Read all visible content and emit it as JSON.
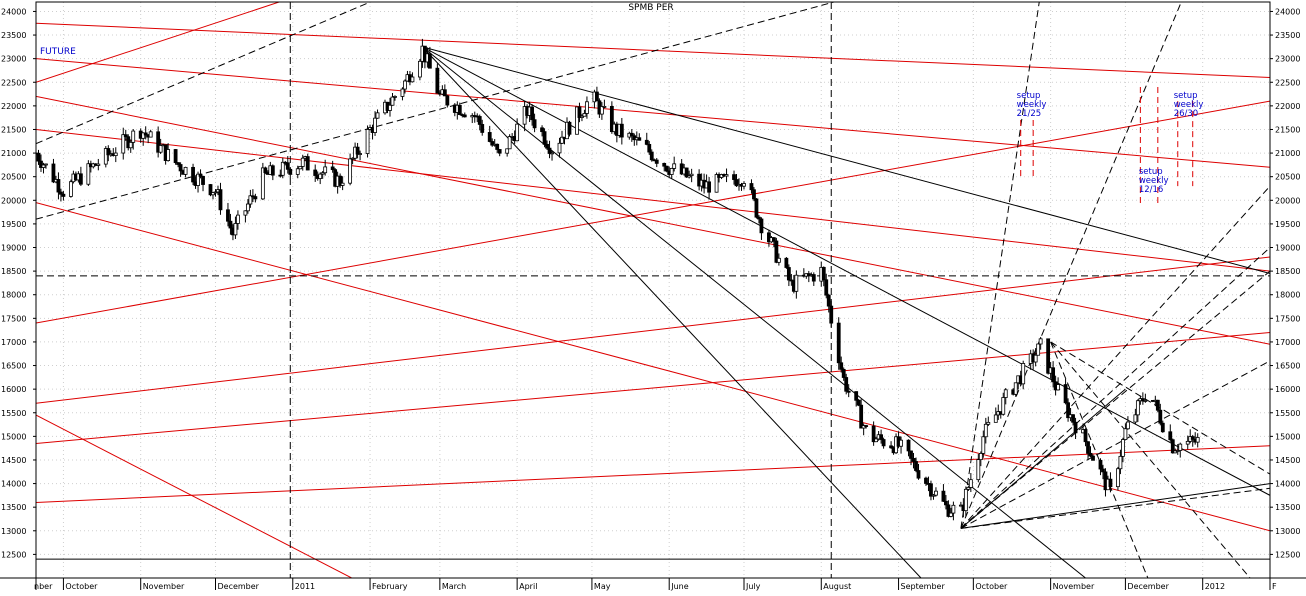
{
  "chart_data": {
    "type": "line",
    "title": "SPMB PER",
    "annotations": {
      "future_label": "FUTURE",
      "setups": [
        {
          "lines": [
            "setup",
            "weekly",
            "21/25"
          ],
          "x": "2011-10-24"
        },
        {
          "lines": [
            "setup",
            "weekly",
            "12/16"
          ],
          "x": "2011-12-12"
        },
        {
          "lines": [
            "setup",
            "weekly",
            "26/30"
          ],
          "x": "2011-12-26"
        }
      ]
    },
    "x_axis": {
      "range": [
        "2010-09-20",
        "2012-01-28"
      ],
      "tick_labels": [
        {
          "label": "nber",
          "date": "2010-09-20"
        },
        {
          "label": "October",
          "date": "2010-10-01"
        },
        {
          "label": "November",
          "date": "2010-11-01"
        },
        {
          "label": "December",
          "date": "2010-12-01"
        },
        {
          "label": "2011",
          "date": "2011-01-01"
        },
        {
          "label": "February",
          "date": "2011-02-01"
        },
        {
          "label": "March",
          "date": "2011-03-01"
        },
        {
          "label": "April",
          "date": "2011-04-01"
        },
        {
          "label": "May",
          "date": "2011-05-01"
        },
        {
          "label": "June",
          "date": "2011-06-01"
        },
        {
          "label": "July",
          "date": "2011-07-01"
        },
        {
          "label": "August",
          "date": "2011-08-01"
        },
        {
          "label": "September",
          "date": "2011-09-01"
        },
        {
          "label": "October",
          "date": "2011-10-01"
        },
        {
          "label": "November",
          "date": "2011-11-01"
        },
        {
          "label": "December",
          "date": "2011-12-01"
        },
        {
          "label": "2012",
          "date": "2012-01-01"
        },
        {
          "label": "F",
          "date": "2012-01-28"
        }
      ]
    },
    "y_axis": {
      "range": [
        12000,
        24200
      ],
      "ticks": [
        12500,
        13000,
        13500,
        14000,
        14500,
        15000,
        15500,
        16000,
        16500,
        17000,
        17500,
        18000,
        18500,
        19000,
        19500,
        20000,
        20500,
        21000,
        21500,
        22000,
        22500,
        23000,
        23500,
        24000
      ],
      "position": "both sides"
    },
    "series": [
      {
        "type": "price",
        "color": "#000000",
        "x": [
          "2010-09-20",
          "2010-10-01",
          "2010-10-15",
          "2010-11-01",
          "2010-11-15",
          "2010-12-01",
          "2010-12-08",
          "2010-12-20",
          "2011-01-05",
          "2011-01-20",
          "2011-02-01",
          "2011-02-15",
          "2011-02-22",
          "2011-03-01",
          "2011-03-15",
          "2011-03-25",
          "2011-04-05",
          "2011-04-15",
          "2011-05-01",
          "2011-05-10",
          "2011-05-20",
          "2011-06-01",
          "2011-06-15",
          "2011-07-01",
          "2011-07-08",
          "2011-07-20",
          "2011-08-01",
          "2011-08-10",
          "2011-08-20",
          "2011-09-01",
          "2011-09-10",
          "2011-09-20",
          "2011-09-26",
          "2011-10-05",
          "2011-10-15",
          "2011-10-28",
          "2011-11-05",
          "2011-11-15",
          "2011-11-25",
          "2011-12-01",
          "2011-12-10",
          "2011-12-20",
          "2011-12-30"
        ],
        "y": [
          21000,
          20200,
          20800,
          21500,
          20800,
          20200,
          19300,
          20500,
          20800,
          20400,
          21500,
          22500,
          23200,
          22200,
          21800,
          20900,
          21900,
          21100,
          22200,
          21500,
          21200,
          20700,
          20300,
          20500,
          19500,
          18200,
          18500,
          16200,
          15000,
          14800,
          14200,
          13500,
          13400,
          15000,
          15900,
          16900,
          15800,
          14900,
          13800,
          15100,
          16000,
          14800,
          14900
        ]
      }
    ],
    "trend_lines": {
      "red": [
        {
          "from": [
            "2010-09-20",
            23750
          ],
          "to": [
            "2012-01-28",
            22600
          ]
        },
        {
          "from": [
            "2010-09-20",
            23000
          ],
          "to": [
            "2012-01-28",
            20700
          ]
        },
        {
          "from": [
            "2010-09-20",
            22200
          ],
          "to": [
            "2012-01-28",
            16950
          ]
        },
        {
          "from": [
            "2010-09-20",
            21500
          ],
          "to": [
            "2012-01-28",
            18500
          ]
        },
        {
          "from": [
            "2010-09-20",
            19950
          ],
          "to": [
            "2012-01-28",
            13000
          ]
        },
        {
          "from": [
            "2010-09-20",
            17400
          ],
          "to": [
            "2012-01-28",
            22100
          ]
        },
        {
          "from": [
            "2010-09-20",
            15700
          ],
          "to": [
            "2012-01-28",
            18800
          ]
        },
        {
          "from": [
            "2010-09-20",
            14850
          ],
          "to": [
            "2012-01-28",
            17200
          ]
        },
        {
          "from": [
            "2010-09-20",
            13600
          ],
          "to": [
            "2012-01-28",
            14800
          ]
        },
        {
          "from": [
            "2010-09-20",
            15450
          ],
          "to": [
            "2011-02-01",
            11800
          ]
        },
        {
          "from": [
            "2010-09-20",
            22500
          ],
          "to": [
            "2011-01-07",
            24400
          ]
        }
      ],
      "black_solid": [
        {
          "from": [
            "2011-02-22",
            23250
          ],
          "to": [
            "2012-01-28",
            18450
          ]
        },
        {
          "from": [
            "2011-02-22",
            23250
          ],
          "to": [
            "2012-01-28",
            13750
          ]
        },
        {
          "from": [
            "2011-02-22",
            23250
          ],
          "to": [
            "2011-11-15",
            12000
          ]
        },
        {
          "from": [
            "2011-02-22",
            23250
          ],
          "to": [
            "2011-09-10",
            12000
          ]
        },
        {
          "from": [
            "2011-09-26",
            13050
          ],
          "to": [
            "2012-01-28",
            14000
          ]
        },
        {
          "from": [
            "2011-09-26",
            13050
          ],
          "to": [
            "2011-12-01",
            16000
          ]
        }
      ],
      "black_dashed": [
        {
          "from": [
            "2010-09-20",
            19600
          ],
          "to": [
            "2011-08-20",
            24400
          ]
        },
        {
          "from": [
            "2010-09-20",
            21200
          ],
          "to": [
            "2011-02-10",
            24400
          ]
        },
        {
          "from": [
            "2011-09-26",
            13050
          ],
          "to": [
            "2011-10-28",
            24400
          ]
        },
        {
          "from": [
            "2011-09-26",
            13050
          ],
          "to": [
            "2011-12-25",
            24400
          ]
        },
        {
          "from": [
            "2011-09-26",
            13050
          ],
          "to": [
            "2012-01-28",
            20300
          ]
        },
        {
          "from": [
            "2011-09-26",
            13050
          ],
          "to": [
            "2012-01-28",
            19000
          ]
        },
        {
          "from": [
            "2011-09-26",
            13050
          ],
          "to": [
            "2012-01-28",
            18500
          ]
        },
        {
          "from": [
            "2011-09-26",
            13050
          ],
          "to": [
            "2012-01-28",
            16600
          ]
        },
        {
          "from": [
            "2011-09-26",
            13050
          ],
          "to": [
            "2012-01-28",
            13900
          ]
        },
        {
          "from": [
            "2011-11-01",
            17000
          ],
          "to": [
            "2012-01-28",
            14200
          ]
        },
        {
          "from": [
            "2011-11-01",
            17000
          ],
          "to": [
            "2012-01-20",
            12000
          ]
        },
        {
          "from": [
            "2011-11-01",
            17000
          ],
          "to": [
            "2011-12-10",
            12000
          ]
        }
      ],
      "horizontal": [
        {
          "y": 18400,
          "style": "dashed"
        },
        {
          "y": 12400,
          "style": "solid"
        }
      ],
      "vertical_dashed": [
        "2010-12-31",
        "2011-08-05"
      ],
      "red_vertical_dashed": [
        {
          "x": "2011-10-20",
          "y": [
            20500,
            21700
          ]
        },
        {
          "x": "2011-10-25",
          "y": [
            20500,
            21700
          ]
        },
        {
          "x": "2011-12-07",
          "y": [
            19900,
            22400
          ]
        },
        {
          "x": "2011-12-14",
          "y": [
            19900,
            22400
          ]
        },
        {
          "x": "2011-12-22",
          "y": [
            20300,
            22100
          ]
        },
        {
          "x": "2011-12-28",
          "y": [
            20300,
            22100
          ]
        }
      ]
    },
    "colors": {
      "price": "#000000",
      "trend_red": "#dd0000",
      "trend_black": "#000000",
      "annotation": "#0000cc",
      "grid": "#cfcfcf"
    }
  }
}
